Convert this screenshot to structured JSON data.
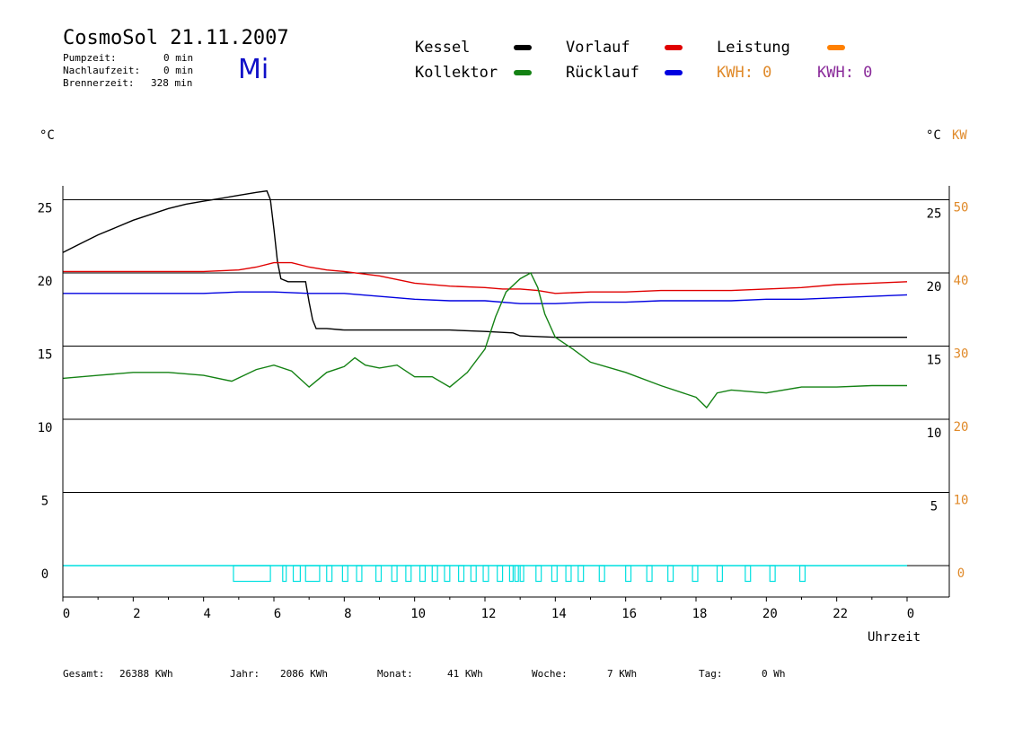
{
  "header": {
    "title": "CosmoSol 21.11.2007",
    "weekday": "Mi",
    "pump_label": "Pumpzeit:",
    "pump_value": "0 min",
    "nachlauf_label": "Nachlaufzeit:",
    "nachlauf_value": "0 min",
    "brenner_label": "Brennerzeit:",
    "brenner_value": "328 min"
  },
  "legend": {
    "kessel": "Kessel",
    "kollektor": "Kollektor",
    "vorlauf": "Vorlauf",
    "ruecklauf": "Rücklauf",
    "leistung": "Leistung",
    "kwh_orange": "KWH: 0",
    "kwh_purple": "KWH: 0"
  },
  "colors": {
    "kessel": "#000000",
    "kollektor": "#148214",
    "vorlauf": "#e00000",
    "ruecklauf": "#0000e0",
    "leistung": "#ff8000",
    "kwh_purple": "#8a2b9a",
    "pump": "#00e0e0"
  },
  "footer": {
    "gesamt_label": "Gesamt:",
    "gesamt_value": "26388 KWh",
    "jahr_label": "Jahr:",
    "jahr_value": "2086 KWh",
    "monat_label": "Monat:",
    "monat_value": "41 KWh",
    "woche_label": "Woche:",
    "woche_value": "7 KWh",
    "tag_label": "Tag:",
    "tag_value": "0 Wh"
  },
  "chart_data": {
    "type": "line",
    "y_left_label": "°C",
    "y_right_label_c": "°C",
    "y_right_label_kw": "KW",
    "xlabel": "Uhrzeit",
    "x_ticks": [
      "0",
      "2",
      "4",
      "6",
      "8",
      "10",
      "12",
      "14",
      "16",
      "18",
      "20",
      "22",
      "0"
    ],
    "y_left_ticks": [
      "0",
      "5",
      "10",
      "15",
      "20",
      "25"
    ],
    "y_right_c_ticks": [
      "5",
      "10",
      "15",
      "20",
      "25"
    ],
    "y_right_kw_ticks": [
      "0",
      "10",
      "20",
      "30",
      "40",
      "50"
    ],
    "xlim": [
      0,
      24
    ],
    "ylim": [
      0,
      25
    ],
    "grid": "horizontal",
    "series": [
      {
        "name": "Kessel",
        "color": "#000000",
        "x": [
          0,
          0.5,
          1,
          1.5,
          2,
          2.5,
          3,
          3.5,
          4,
          4.5,
          5,
          5.5,
          5.8,
          5.9,
          6.0,
          6.1,
          6.2,
          6.4,
          6.6,
          6.9,
          7.0,
          7.1,
          7.2,
          7.5,
          8,
          9,
          10,
          11,
          12,
          12.8,
          13,
          14,
          16,
          18,
          20,
          22,
          24
        ],
        "y": [
          21.4,
          22.0,
          22.6,
          23.1,
          23.6,
          24.0,
          24.4,
          24.7,
          24.9,
          25.1,
          25.3,
          25.5,
          25.6,
          25.0,
          23.0,
          20.8,
          19.6,
          19.4,
          19.4,
          19.4,
          18.0,
          16.8,
          16.2,
          16.2,
          16.1,
          16.1,
          16.1,
          16.1,
          16.0,
          15.9,
          15.7,
          15.6,
          15.6,
          15.6,
          15.6,
          15.6,
          15.6
        ]
      },
      {
        "name": "Vorlauf",
        "color": "#e00000",
        "x": [
          0,
          1,
          2,
          3,
          4,
          5,
          5.5,
          6,
          6.5,
          7,
          7.5,
          8,
          9,
          10,
          11,
          12,
          12.5,
          13,
          13.5,
          14,
          15,
          16,
          17,
          18,
          19,
          20,
          21,
          22,
          23,
          24
        ],
        "y": [
          20.1,
          20.1,
          20.1,
          20.1,
          20.1,
          20.2,
          20.4,
          20.7,
          20.7,
          20.4,
          20.2,
          20.1,
          19.8,
          19.3,
          19.1,
          19.0,
          18.9,
          18.9,
          18.8,
          18.6,
          18.7,
          18.7,
          18.8,
          18.8,
          18.8,
          18.9,
          19.0,
          19.2,
          19.3,
          19.4
        ]
      },
      {
        "name": "Rücklauf",
        "color": "#0000e0",
        "x": [
          0,
          1,
          2,
          3,
          4,
          5,
          6,
          7,
          8,
          9,
          10,
          11,
          12,
          13,
          14,
          15,
          16,
          17,
          18,
          19,
          20,
          21,
          22,
          23,
          24
        ],
        "y": [
          18.6,
          18.6,
          18.6,
          18.6,
          18.6,
          18.7,
          18.7,
          18.6,
          18.6,
          18.4,
          18.2,
          18.1,
          18.1,
          17.9,
          17.9,
          18.0,
          18.0,
          18.1,
          18.1,
          18.1,
          18.2,
          18.2,
          18.3,
          18.4,
          18.5
        ]
      },
      {
        "name": "Kollektor",
        "color": "#148214",
        "x": [
          0,
          1,
          2,
          3,
          4,
          4.8,
          5.5,
          6,
          6.5,
          7.0,
          7.5,
          8,
          8.3,
          8.6,
          9,
          9.5,
          10,
          10.5,
          11.0,
          11.5,
          12.0,
          12.3,
          12.6,
          13.0,
          13.3,
          13.5,
          13.7,
          14.0,
          14.5,
          15.0,
          16.0,
          17.0,
          18.0,
          18.3,
          18.6,
          19.0,
          20.0,
          21.0,
          22.0,
          23.0,
          24.0
        ],
        "y": [
          12.8,
          13.0,
          13.2,
          13.2,
          13.0,
          12.6,
          13.4,
          13.7,
          13.3,
          12.2,
          13.2,
          13.6,
          14.2,
          13.7,
          13.5,
          13.7,
          12.9,
          12.9,
          12.2,
          13.2,
          14.8,
          17.0,
          18.7,
          19.6,
          20.0,
          19.0,
          17.2,
          15.6,
          14.8,
          13.9,
          13.2,
          12.3,
          11.5,
          10.8,
          11.8,
          12.0,
          11.8,
          12.2,
          12.2,
          12.3,
          12.3
        ]
      },
      {
        "name": "Pumpe",
        "color": "#00e0e0",
        "segments": [
          [
            4.85,
            5.9
          ],
          [
            6.25,
            6.35
          ],
          [
            6.55,
            6.75
          ],
          [
            6.9,
            7.3
          ],
          [
            7.5,
            7.65
          ],
          [
            7.95,
            8.1
          ],
          [
            8.35,
            8.5
          ],
          [
            8.9,
            9.05
          ],
          [
            9.35,
            9.5
          ],
          [
            9.75,
            9.9
          ],
          [
            10.15,
            10.3
          ],
          [
            10.5,
            10.65
          ],
          [
            10.85,
            11.0
          ],
          [
            11.25,
            11.4
          ],
          [
            11.6,
            11.75
          ],
          [
            11.95,
            12.1
          ],
          [
            12.35,
            12.5
          ],
          [
            12.7,
            12.8
          ],
          [
            12.85,
            12.95
          ],
          [
            13.0,
            13.1
          ],
          [
            13.45,
            13.6
          ],
          [
            13.9,
            14.05
          ],
          [
            14.3,
            14.45
          ],
          [
            14.65,
            14.8
          ],
          [
            15.25,
            15.4
          ],
          [
            16.0,
            16.15
          ],
          [
            16.6,
            16.75
          ],
          [
            17.2,
            17.35
          ],
          [
            17.9,
            18.05
          ],
          [
            18.6,
            18.75
          ],
          [
            19.4,
            19.55
          ],
          [
            20.1,
            20.25
          ],
          [
            20.95,
            21.1
          ]
        ],
        "level": -0.4,
        "top": 0
      }
    ]
  }
}
